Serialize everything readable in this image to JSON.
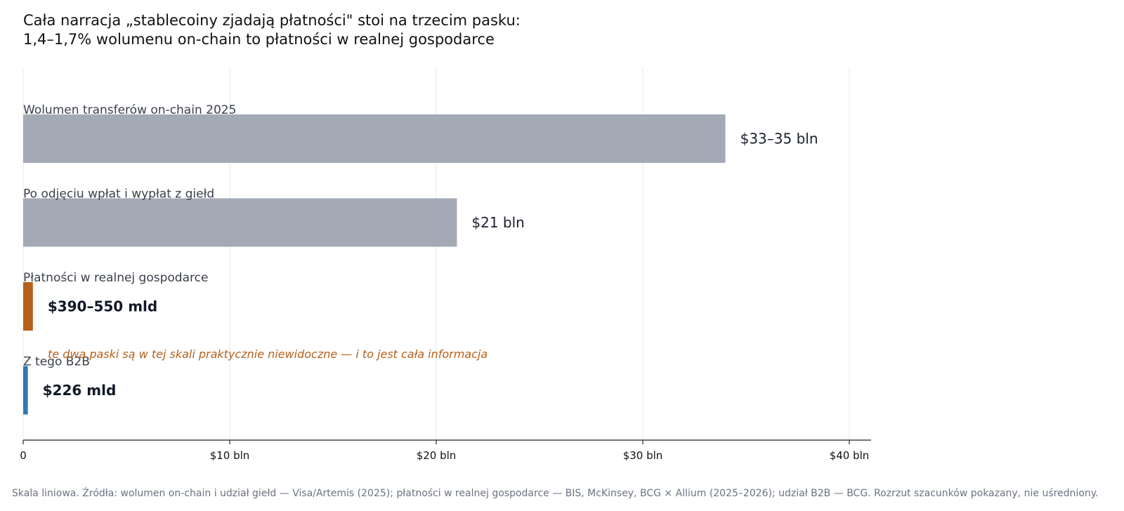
{
  "title_lines": [
    "Cała narracja „stablecoiny zjadają płatności\" stoi na trzecim pasku:",
    "1,4–1,7% wolumenu on-chain to płatności w realnej gospodarce"
  ],
  "annotation": "te dwa paski są w tej skali praktycznie niewidoczne — i to jest cała informacja",
  "footnote": "Skala liniowa. Źródła: wolumen on-chain i udział giełd — Visa/Artemis (2025); płatności w realnej gospodarce — BIS, McKinsey, BCG × Allium (2025–2026); udział B2B — BCG. Rozrzut szacunków pokazany, nie uśredniony.",
  "colors": {
    "gray_bar": "#a3aab5",
    "orange": "#b5601c",
    "blue": "#2e78b5",
    "grid": "#e8e8e8",
    "axis": "#222222"
  },
  "chart_data": {
    "type": "bar",
    "orientation": "horizontal",
    "unit": "bln USD",
    "xlim": [
      0,
      41
    ],
    "xticks": [
      0,
      10,
      20,
      30,
      40
    ],
    "xtick_labels": [
      "0",
      "$10 bln",
      "$20 bln",
      "$30 bln",
      "$40 bln"
    ],
    "grid": "vertical",
    "categories": [
      "Wolumen transferów on-chain 2025",
      "Po odjęciu wpłat i wypłat z giełd",
      "Płatności w realnej gospodarce",
      "Z tego B2B"
    ],
    "values": [
      34,
      21,
      0.47,
      0.226
    ],
    "value_labels": [
      "$33–35 bln",
      "$21 bln",
      "$390–550 mld",
      "$226 mld"
    ],
    "value_label_bold": [
      false,
      false,
      true,
      true
    ],
    "bar_colors": [
      "#a3aab5",
      "#a3aab5",
      "#b5601c",
      "#2e78b5"
    ]
  }
}
